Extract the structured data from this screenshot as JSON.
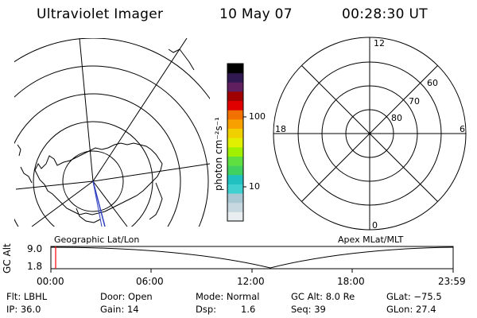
{
  "header": {
    "instrument": "Ultraviolet Imager",
    "date": "10 May 07",
    "time": "00:28:30 UT"
  },
  "colorbar": {
    "unit_label": "photon cm⁻²s⁻¹",
    "tick_100": "100",
    "tick_10": "10",
    "colors": [
      "#e8eef0",
      "#c8d8e0",
      "#a8c8d4",
      "#40d0d0",
      "#20c0c0",
      "#40d060",
      "#60e040",
      "#a0f000",
      "#e0f000",
      "#f0d000",
      "#f8a000",
      "#f07000",
      "#e00000",
      "#a00000",
      "#602060",
      "#301850",
      "#000000"
    ]
  },
  "left_panel": {
    "label": "Geographic Lat/Lon",
    "meridian_colors": {
      "blue": "#3040c0",
      "red": "#d02020"
    }
  },
  "right_panel": {
    "label": "Apex MLat/MLT",
    "mlt_12": "12",
    "mlt_6": "6",
    "mlt_18": "18",
    "mlt_0": "0",
    "lat_60": "60",
    "lat_70": "70",
    "lat_80": "80"
  },
  "altitude_strip": {
    "axis_label": "GC Alt",
    "y_high": "9.0",
    "y_low": "1.8",
    "x_ticks": [
      "00:00",
      "06:00",
      "12:00",
      "18:00",
      "23:59"
    ],
    "marker_color": "#ff0000"
  },
  "info": {
    "filter": "Flt: LBHL",
    "ip": "IP: 36.0",
    "door": "Door: Open",
    "gain": "Gain: 14",
    "mode": "Mode: Normal",
    "dsp_label": "Dsp:",
    "dsp_value": "1.6",
    "gc_alt": "GC Alt: 8.0 Re",
    "seq": "Seq: 39",
    "glat": "GLat: −75.5",
    "glon": "GLon:  27.4"
  }
}
